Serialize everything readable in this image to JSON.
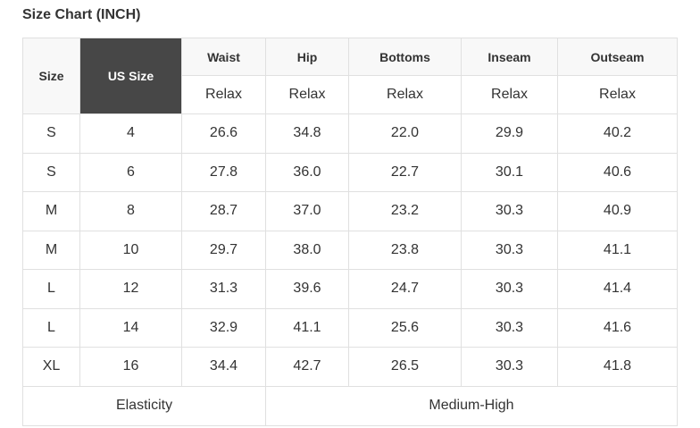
{
  "title": "Size Chart (INCH)",
  "colors": {
    "us_size_header_bg": "#474747",
    "header_bg": "#f8f8f8",
    "border": "#e0e0e0"
  },
  "headers": {
    "size": "Size",
    "us_size": "US Size",
    "measures": [
      "Waist",
      "Hip",
      "Bottoms",
      "Inseam",
      "Outseam"
    ],
    "fit": [
      "Relax",
      "Relax",
      "Relax",
      "Relax",
      "Relax"
    ]
  },
  "rows": [
    [
      "S",
      "4",
      "26.6",
      "34.8",
      "22.0",
      "29.9",
      "40.2"
    ],
    [
      "S",
      "6",
      "27.8",
      "36.0",
      "22.7",
      "30.1",
      "40.6"
    ],
    [
      "M",
      "8",
      "28.7",
      "37.0",
      "23.2",
      "30.3",
      "40.9"
    ],
    [
      "M",
      "10",
      "29.7",
      "38.0",
      "23.8",
      "30.3",
      "41.1"
    ],
    [
      "L",
      "12",
      "31.3",
      "39.6",
      "24.7",
      "30.3",
      "41.4"
    ],
    [
      "L",
      "14",
      "32.9",
      "41.1",
      "25.6",
      "30.3",
      "41.6"
    ],
    [
      "XL",
      "16",
      "34.4",
      "42.7",
      "26.5",
      "30.3",
      "41.8"
    ]
  ],
  "footer": {
    "label": "Elasticity",
    "value": "Medium-High"
  }
}
